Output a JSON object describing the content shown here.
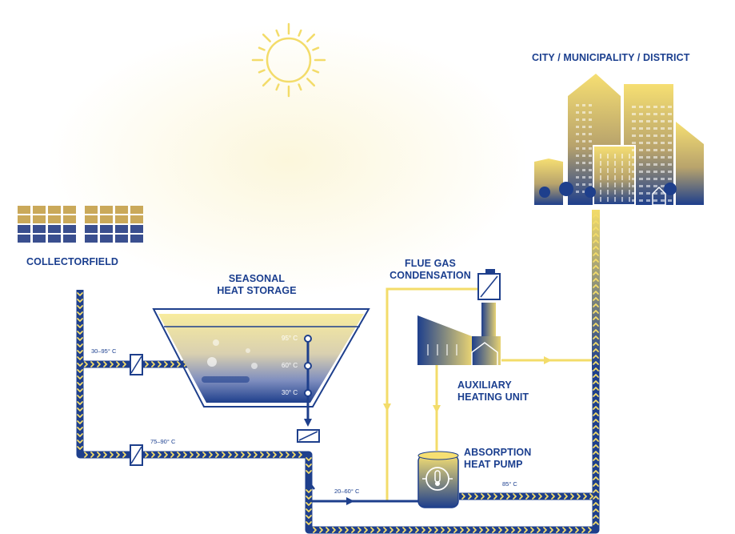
{
  "labels": {
    "city": "CITY / MUNICIPALITY / DISTRICT",
    "collectorfield": "COLLECTORFIELD",
    "seasonal_storage_l1": "SEASONAL",
    "seasonal_storage_l2": "HEAT STORAGE",
    "flue_gas_l1": "FLUE GAS",
    "flue_gas_l2": "CONDENSATION",
    "auxiliary_l1": "AUXILIARY",
    "auxiliary_l2": "HEATING UNIT",
    "absorption_l1": "ABSORPTION",
    "absorption_l2": "HEAT PUMP"
  },
  "temperatures": {
    "collector_inlet": "30–95° C",
    "collector_return": "75–90° C",
    "storage_top": "95° C",
    "storage_mid": "60° C",
    "storage_bottom": "30° C",
    "heat_pump_in": "20–60° C",
    "heat_pump_out": "85° C"
  },
  "colors": {
    "navy": "#1e3f8c",
    "yellow": "#f3dc6a",
    "pale_yellow": "#f8ecb0",
    "white": "#ffffff"
  }
}
